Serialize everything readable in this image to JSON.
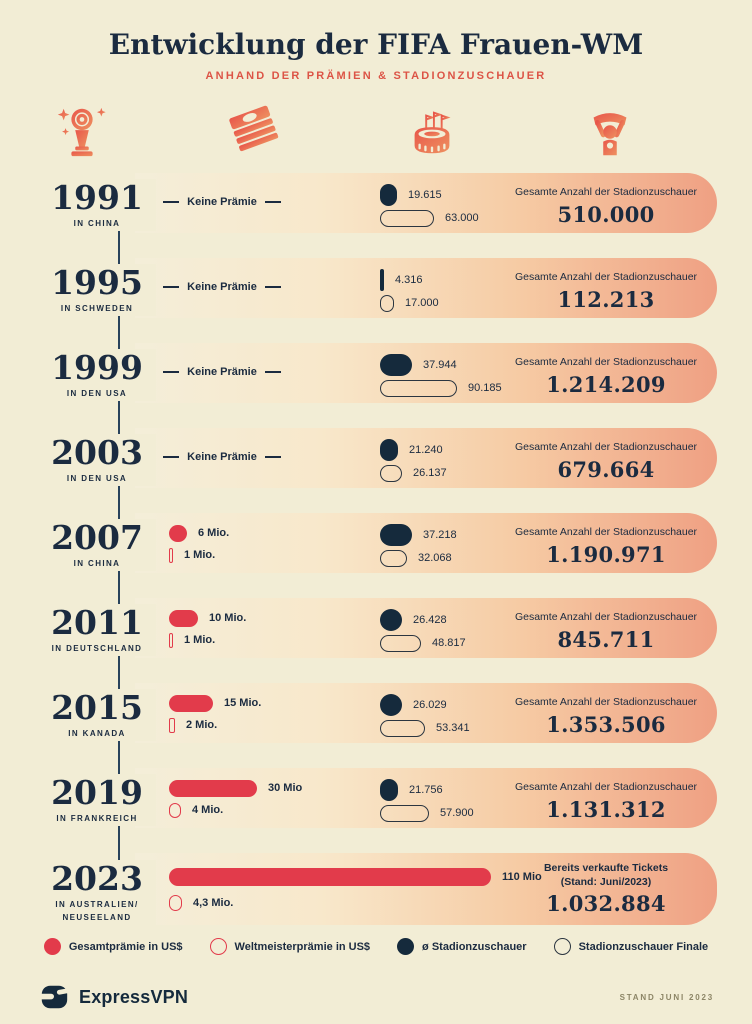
{
  "title": "Entwicklung der FIFA Frauen-WM",
  "subtitle": "ANHAND DER PRÄMIEN & STADIONZUSCHAUER",
  "header_icons": [
    "worldcup-trophy",
    "money-bills",
    "stadium",
    "fan-with-scarf"
  ],
  "colors": {
    "background": "#F2EDD5",
    "navy": "#152A3C",
    "red": "#E23B4B",
    "salmon": "#EFA083",
    "accent": "#DC5446"
  },
  "rows": [
    {
      "year": "1991",
      "location": "IN CHINA",
      "prize": {
        "none_label": "Keine Prämie"
      },
      "attendance": {
        "avg_value": 19615,
        "avg_label": "19.615",
        "final_value": 63000,
        "final_label": "63.000"
      },
      "total": {
        "label": "Gesamte Anzahl der Stadionzuschauer",
        "value": "510.000"
      }
    },
    {
      "year": "1995",
      "location": "IN SCHWEDEN",
      "prize": {
        "none_label": "Keine Prämie"
      },
      "attendance": {
        "avg_value": 4316,
        "avg_label": "4.316",
        "final_value": 17000,
        "final_label": "17.000"
      },
      "total": {
        "label": "Gesamte Anzahl der Stadionzuschauer",
        "value": "112.213"
      }
    },
    {
      "year": "1999",
      "location": "IN DEN USA",
      "prize": {
        "none_label": "Keine Prämie"
      },
      "attendance": {
        "avg_value": 37944,
        "avg_label": "37.944",
        "final_value": 90185,
        "final_label": "90.185"
      },
      "total": {
        "label": "Gesamte Anzahl der Stadionzuschauer",
        "value": "1.214.209"
      }
    },
    {
      "year": "2003",
      "location": "IN DEN USA",
      "prize": {
        "none_label": "Keine Prämie"
      },
      "attendance": {
        "avg_value": 21240,
        "avg_label": "21.240",
        "final_value": 26137,
        "final_label": "26.137"
      },
      "total": {
        "label": "Gesamte Anzahl der Stadionzuschauer",
        "value": "679.664"
      }
    },
    {
      "year": "2007",
      "location": "IN CHINA",
      "prize": {
        "total_mio": 6,
        "total_label": "6 Mio.",
        "champion_mio": 1,
        "champion_label": "1 Mio."
      },
      "attendance": {
        "avg_value": 37218,
        "avg_label": "37.218",
        "final_value": 32068,
        "final_label": "32.068"
      },
      "total": {
        "label": "Gesamte Anzahl der Stadionzuschauer",
        "value": "1.190.971"
      }
    },
    {
      "year": "2011",
      "location": "IN DEUTSCHLAND",
      "prize": {
        "total_mio": 10,
        "total_label": "10 Mio.",
        "champion_mio": 1,
        "champion_label": "1 Mio."
      },
      "attendance": {
        "avg_value": 26428,
        "avg_label": "26.428",
        "final_value": 48817,
        "final_label": "48.817"
      },
      "total": {
        "label": "Gesamte Anzahl der Stadionzuschauer",
        "value": "845.711"
      }
    },
    {
      "year": "2015",
      "location": "IN KANADA",
      "prize": {
        "total_mio": 15,
        "total_label": "15 Mio.",
        "champion_mio": 2,
        "champion_label": "2 Mio."
      },
      "attendance": {
        "avg_value": 26029,
        "avg_label": "26.029",
        "final_value": 53341,
        "final_label": "53.341"
      },
      "total": {
        "label": "Gesamte Anzahl der Stadionzuschauer",
        "value": "1.353.506"
      }
    },
    {
      "year": "2019",
      "location": "IN FRANKREICH",
      "prize": {
        "total_mio": 30,
        "total_label": "30 Mio",
        "champion_mio": 4,
        "champion_label": "4 Mio."
      },
      "attendance": {
        "avg_value": 21756,
        "avg_label": "21.756",
        "final_value": 57900,
        "final_label": "57.900"
      },
      "total": {
        "label": "Gesamte Anzahl der Stadionzuschauer",
        "value": "1.131.312"
      }
    },
    {
      "year": "2023",
      "location": "IN AUSTRALIEN/",
      "location2": "NEUSEELAND",
      "prize": {
        "total_mio": 110,
        "total_label": "110 Mio",
        "champion_mio": 4.3,
        "champion_label": "4,3 Mio."
      },
      "attendance": null,
      "total": {
        "label": "Bereits verkaufte Tickets",
        "label2": "(Stand: Juni/2023)",
        "value": "1.032.884"
      }
    }
  ],
  "legend": {
    "items": [
      {
        "swatch": "red-filled",
        "label": "Gesamtprämie in US$"
      },
      {
        "swatch": "red-outline",
        "label": "Weltmeisterprämie in US$"
      },
      {
        "swatch": "navy-filled",
        "label": "ø Stadionzuschauer"
      },
      {
        "swatch": "navy-outline",
        "label": "Stadionzuschauer Finale"
      }
    ]
  },
  "footer": {
    "brand": "ExpressVPN",
    "note": "STAND JUNI 2023"
  },
  "chart_data": {
    "type": "bar",
    "title": "Entwicklung der FIFA Frauen-WM",
    "subtitle": "ANHAND DER PRÄMIEN & STADIONZUSCHAUER",
    "categories": [
      "1991",
      "1995",
      "1999",
      "2003",
      "2007",
      "2011",
      "2015",
      "2019",
      "2023"
    ],
    "locations": [
      "China",
      "Schweden",
      "USA",
      "USA",
      "China",
      "Deutschland",
      "Kanada",
      "Frankreich",
      "Australien/Neuseeland"
    ],
    "series": [
      {
        "name": "Gesamtprämie in US$ (Mio.)",
        "values": [
          null,
          null,
          null,
          null,
          6,
          10,
          15,
          30,
          110
        ]
      },
      {
        "name": "Weltmeisterprämie in US$ (Mio.)",
        "values": [
          null,
          null,
          null,
          null,
          1,
          1,
          2,
          4,
          4.3
        ]
      },
      {
        "name": "ø Stadionzuschauer",
        "values": [
          19615,
          4316,
          37944,
          21240,
          37218,
          26428,
          26029,
          21756,
          null
        ]
      },
      {
        "name": "Stadionzuschauer Finale",
        "values": [
          63000,
          17000,
          90185,
          26137,
          32068,
          48817,
          53341,
          57900,
          null
        ]
      },
      {
        "name": "Gesamte Anzahl der Stadionzuschauer",
        "values": [
          510000,
          112213,
          1214209,
          679664,
          1190971,
          845711,
          1353506,
          1131312,
          1032884
        ]
      }
    ],
    "annotations": [
      "2023: Bereits verkaufte Tickets (Stand: Juni/2023) = 1.032.884",
      "Keine Prämie 1991–2003"
    ],
    "legend_position": "bottom",
    "grid": false
  }
}
